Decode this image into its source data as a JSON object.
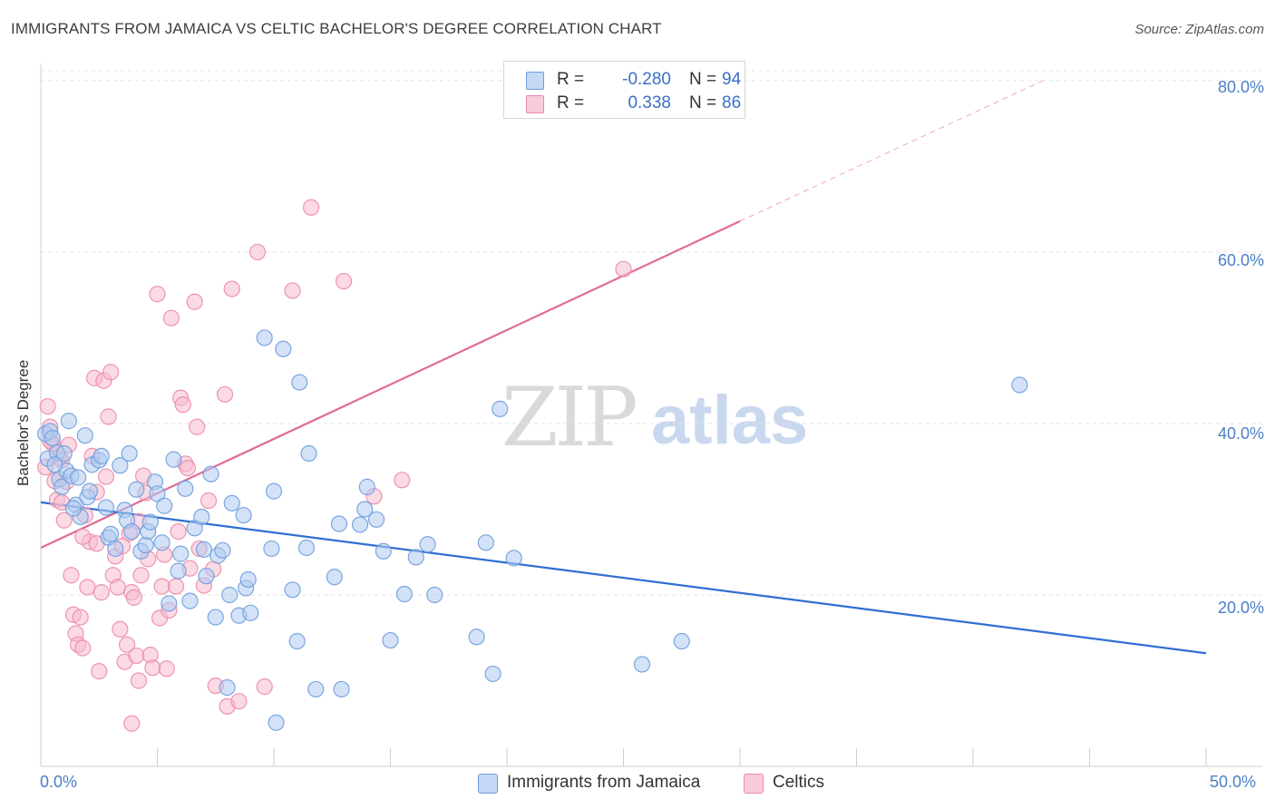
{
  "title": "IMMIGRANTS FROM JAMAICA VS CELTIC BACHELOR'S DEGREE CORRELATION CHART",
  "source": "Source: ZipAtlas.com",
  "watermark": {
    "zip": "ZIP",
    "atlas": "atlas"
  },
  "legend_top": {
    "rows": [
      {
        "r_label": "R =",
        "r_value": "-0.280",
        "n_label": "N =",
        "n_value": "94"
      },
      {
        "r_label": "R =",
        "r_value": " 0.338",
        "n_label": "N =",
        "n_value": "86"
      }
    ]
  },
  "legend_bottom": {
    "series1": "Immigrants from Jamaica",
    "series2": "Celtics"
  },
  "colors": {
    "blue_fill": "#aecbf0",
    "blue_stroke": "#6f9ddd",
    "blue_line": "#2f6fd1",
    "pink_fill": "#f7bccd",
    "pink_stroke": "#ec8aa8",
    "pink_line": "#e06b95"
  },
  "chart_data": {
    "type": "scatter",
    "title": "IMMIGRANTS FROM JAMAICA VS CELTIC BACHELOR'S DEGREE CORRELATION CHART",
    "xlabel": "",
    "ylabel": "Bachelor's Degree",
    "xlim": [
      0,
      50
    ],
    "ylim": [
      0,
      82
    ],
    "y_ticks": [
      20,
      40,
      60,
      80
    ],
    "y_tick_labels": [
      "20.0%",
      "40.0%",
      "60.0%",
      "80.0%"
    ],
    "x_tick_labels": [
      "0.0%",
      "50.0%"
    ],
    "x_minor_ticks": [
      0,
      5,
      10,
      15,
      20,
      25,
      30,
      35,
      40,
      45,
      50
    ],
    "series": [
      {
        "name": "Immigrants from Jamaica",
        "color": "blue",
        "trend": {
          "x0": 0,
          "y0": 30.8,
          "x1": 50,
          "y1": 13.2
        },
        "points": [
          [
            0.2,
            38.8
          ],
          [
            0.3,
            35.9
          ],
          [
            0.4,
            39.1
          ],
          [
            0.5,
            38.3
          ],
          [
            0.7,
            36.6
          ],
          [
            0.8,
            33.5
          ],
          [
            0.9,
            32.6
          ],
          [
            1.0,
            36.5
          ],
          [
            1.1,
            34.5
          ],
          [
            1.2,
            40.3
          ],
          [
            1.3,
            33.9
          ],
          [
            1.5,
            30.5
          ],
          [
            1.6,
            33.7
          ],
          [
            1.7,
            29.1
          ],
          [
            1.9,
            38.6
          ],
          [
            2.0,
            31.4
          ],
          [
            2.1,
            32.1
          ],
          [
            2.2,
            35.2
          ],
          [
            2.5,
            35.7
          ],
          [
            2.6,
            36.2
          ],
          [
            2.8,
            30.2
          ],
          [
            2.9,
            26.7
          ],
          [
            3.0,
            27.1
          ],
          [
            3.2,
            25.4
          ],
          [
            3.4,
            35.1
          ],
          [
            3.6,
            29.9
          ],
          [
            3.7,
            28.7
          ],
          [
            3.8,
            36.5
          ],
          [
            3.9,
            27.4
          ],
          [
            4.1,
            32.3
          ],
          [
            4.3,
            25.1
          ],
          [
            4.5,
            25.8
          ],
          [
            4.6,
            27.4
          ],
          [
            4.7,
            28.5
          ],
          [
            4.9,
            33.2
          ],
          [
            5.0,
            31.8
          ],
          [
            5.2,
            26.1
          ],
          [
            5.3,
            30.4
          ],
          [
            5.5,
            19.0
          ],
          [
            5.7,
            35.8
          ],
          [
            5.9,
            22.8
          ],
          [
            6.0,
            24.8
          ],
          [
            6.2,
            32.4
          ],
          [
            6.4,
            19.3
          ],
          [
            6.6,
            27.8
          ],
          [
            6.9,
            29.1
          ],
          [
            7.0,
            25.3
          ],
          [
            7.1,
            22.2
          ],
          [
            7.3,
            34.1
          ],
          [
            7.5,
            17.4
          ],
          [
            7.6,
            24.6
          ],
          [
            7.8,
            25.2
          ],
          [
            8.0,
            9.2
          ],
          [
            8.1,
            20.0
          ],
          [
            8.2,
            30.7
          ],
          [
            8.5,
            17.6
          ],
          [
            8.7,
            29.3
          ],
          [
            8.8,
            20.8
          ],
          [
            8.9,
            21.8
          ],
          [
            9.0,
            17.9
          ],
          [
            9.6,
            50.0
          ],
          [
            9.9,
            25.4
          ],
          [
            10.0,
            32.1
          ],
          [
            10.1,
            5.1
          ],
          [
            10.4,
            48.7
          ],
          [
            10.8,
            20.6
          ],
          [
            11.0,
            14.6
          ],
          [
            11.1,
            44.8
          ],
          [
            11.4,
            25.5
          ],
          [
            11.5,
            36.5
          ],
          [
            11.8,
            9.0
          ],
          [
            12.6,
            22.1
          ],
          [
            12.8,
            28.3
          ],
          [
            12.9,
            9.0
          ],
          [
            13.7,
            28.2
          ],
          [
            13.9,
            30.0
          ],
          [
            14.0,
            32.6
          ],
          [
            14.4,
            28.8
          ],
          [
            14.7,
            25.1
          ],
          [
            15.0,
            14.7
          ],
          [
            15.6,
            20.1
          ],
          [
            16.1,
            24.4
          ],
          [
            16.6,
            25.9
          ],
          [
            16.9,
            20.0
          ],
          [
            18.7,
            15.1
          ],
          [
            19.1,
            26.1
          ],
          [
            19.4,
            10.8
          ],
          [
            19.7,
            41.7
          ],
          [
            20.3,
            24.3
          ],
          [
            25.8,
            11.9
          ],
          [
            27.5,
            14.6
          ],
          [
            42.0,
            44.5
          ],
          [
            0.6,
            35.2
          ],
          [
            1.4,
            30.1
          ]
        ]
      },
      {
        "name": "Celtics",
        "color": "pink",
        "trend": {
          "x0": 0,
          "y0": 25.5,
          "x1": 30,
          "y1": 63.6,
          "dashed_to": {
            "x": 43,
            "y": 80
          }
        },
        "points": [
          [
            0.2,
            34.9
          ],
          [
            0.3,
            42.0
          ],
          [
            0.4,
            39.6
          ],
          [
            0.5,
            37.7
          ],
          [
            0.6,
            33.3
          ],
          [
            0.7,
            31.1
          ],
          [
            0.8,
            36.0
          ],
          [
            0.9,
            35.7
          ],
          [
            1.0,
            28.7
          ],
          [
            1.1,
            33.2
          ],
          [
            1.2,
            37.5
          ],
          [
            1.3,
            22.3
          ],
          [
            1.4,
            17.7
          ],
          [
            1.5,
            15.5
          ],
          [
            1.6,
            14.2
          ],
          [
            1.7,
            17.4
          ],
          [
            1.8,
            13.8
          ],
          [
            1.9,
            29.3
          ],
          [
            2.0,
            20.9
          ],
          [
            2.1,
            26.2
          ],
          [
            2.2,
            36.2
          ],
          [
            2.3,
            45.3
          ],
          [
            2.4,
            26.0
          ],
          [
            2.5,
            11.1
          ],
          [
            2.6,
            20.3
          ],
          [
            2.7,
            45.0
          ],
          [
            2.8,
            33.8
          ],
          [
            2.9,
            40.8
          ],
          [
            3.0,
            46.0
          ],
          [
            3.1,
            22.3
          ],
          [
            3.2,
            24.5
          ],
          [
            3.3,
            20.9
          ],
          [
            3.4,
            16.0
          ],
          [
            3.5,
            25.7
          ],
          [
            3.6,
            12.2
          ],
          [
            3.7,
            14.2
          ],
          [
            3.8,
            27.2
          ],
          [
            3.9,
            20.3
          ],
          [
            4.0,
            19.7
          ],
          [
            4.1,
            12.9
          ],
          [
            4.2,
            10.0
          ],
          [
            4.3,
            22.3
          ],
          [
            4.4,
            33.9
          ],
          [
            4.5,
            31.9
          ],
          [
            4.6,
            24.2
          ],
          [
            4.7,
            13.0
          ],
          [
            4.8,
            11.5
          ],
          [
            5.0,
            55.1
          ],
          [
            5.1,
            17.3
          ],
          [
            5.2,
            21.0
          ],
          [
            5.3,
            24.7
          ],
          [
            5.4,
            11.4
          ],
          [
            5.5,
            18.2
          ],
          [
            5.6,
            52.3
          ],
          [
            5.8,
            21.0
          ],
          [
            5.9,
            27.4
          ],
          [
            6.0,
            43.0
          ],
          [
            6.1,
            42.2
          ],
          [
            6.2,
            35.3
          ],
          [
            6.3,
            34.8
          ],
          [
            6.4,
            23.1
          ],
          [
            6.6,
            54.2
          ],
          [
            6.8,
            25.4
          ],
          [
            7.0,
            21.1
          ],
          [
            7.2,
            31.0
          ],
          [
            7.5,
            9.4
          ],
          [
            7.9,
            43.4
          ],
          [
            8.0,
            7.0
          ],
          [
            8.2,
            55.7
          ],
          [
            8.5,
            7.6
          ],
          [
            9.3,
            60.0
          ],
          [
            9.6,
            9.3
          ],
          [
            10.8,
            55.5
          ],
          [
            11.6,
            65.2
          ],
          [
            13.0,
            56.6
          ],
          [
            14.3,
            31.5
          ],
          [
            15.5,
            33.4
          ],
          [
            25.0,
            58.0
          ],
          [
            0.4,
            38.0
          ],
          [
            0.9,
            30.8
          ],
          [
            1.8,
            26.8
          ],
          [
            2.4,
            32.0
          ],
          [
            3.9,
            5.0
          ],
          [
            4.2,
            28.6
          ],
          [
            6.7,
            39.6
          ],
          [
            7.4,
            23.0
          ]
        ]
      }
    ]
  }
}
